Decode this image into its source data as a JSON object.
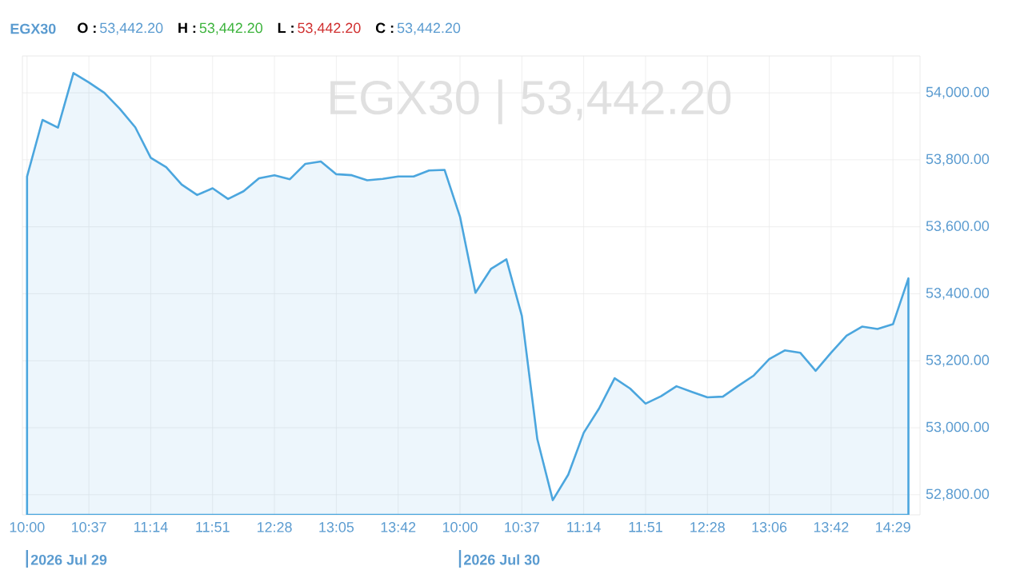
{
  "chart_data": {
    "type": "area",
    "title": "EGX30",
    "subtitle": "EGX30  |  53,442.20",
    "annotations": [
      "O :",
      "53,442.20",
      "H :",
      "53,442.20",
      "L :",
      "53,442.20",
      "C :",
      "53,442.20",
      "2026 Jul 29",
      "2026 Jul 30"
    ],
    "categories": [
      "10:00",
      null,
      null,
      null,
      "10:37",
      null,
      null,
      null,
      "11:14",
      null,
      null,
      null,
      "11:51",
      null,
      null,
      null,
      "12:28",
      null,
      null,
      null,
      "13:05",
      null,
      null,
      null,
      "13:42",
      null,
      null,
      null,
      "10:00",
      null,
      null,
      null,
      "10:37",
      null,
      null,
      null,
      "11:14",
      null,
      null,
      null,
      "11:51",
      null,
      null,
      null,
      "12:28",
      null,
      null,
      null,
      "13:06",
      null,
      null,
      null,
      "13:42",
      null,
      null,
      null,
      "14:29",
      null
    ],
    "series": [
      {
        "color": "#4ba6de",
        "values": [
          53750,
          53919,
          53896,
          54059,
          54031,
          54000,
          53952,
          53897,
          53806,
          53778,
          53726,
          53695,
          53715,
          53683,
          53706,
          53745,
          53754,
          53742,
          53788,
          53795,
          53757,
          53754,
          53739,
          53743,
          53750,
          53750,
          53768,
          53770,
          53630,
          53403,
          53474,
          53503,
          53334,
          52966,
          52784,
          52860,
          52985,
          53058,
          53148,
          53117,
          53072,
          53094,
          53124,
          53107,
          53091,
          53093,
          53125,
          53156,
          53205,
          53231,
          53224,
          53170,
          53224,
          53275,
          53302,
          53295,
          53309,
          53446
        ]
      }
    ],
    "ylim": [
      52740,
      54110
    ],
    "yticks": [
      {
        "value": 52800,
        "label": "52,800.00"
      },
      {
        "value": 53000,
        "label": "53,000.00"
      },
      {
        "value": 53200,
        "label": "53,200.00"
      },
      {
        "value": 53400,
        "label": "53,400.00"
      },
      {
        "value": 53600,
        "label": "53,600.00"
      },
      {
        "value": 53800,
        "label": "53,800.00"
      },
      {
        "value": 54000,
        "label": "54,000.00"
      }
    ],
    "grid": true
  }
}
